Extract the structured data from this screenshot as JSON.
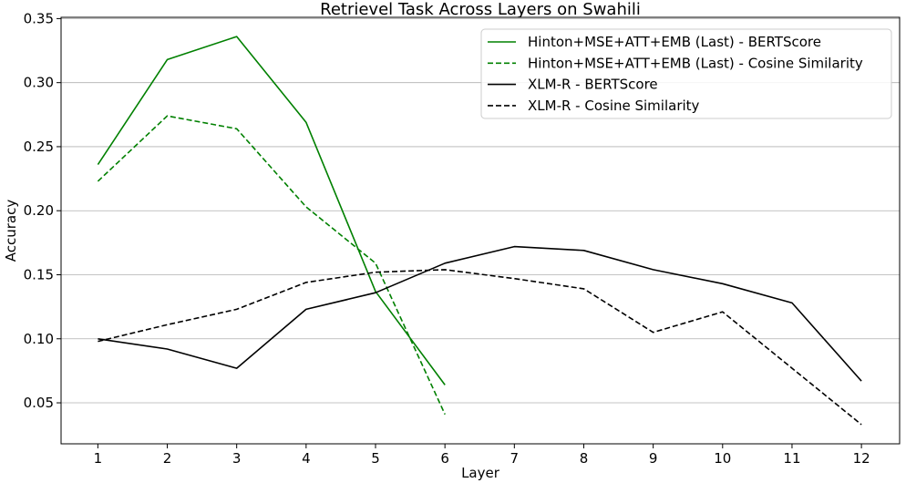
{
  "chart_data": {
    "type": "line",
    "title": "Retrievel Task Across Layers on Swahili",
    "xlabel": "Layer",
    "ylabel": "Accuracy",
    "xlim": [
      0.47,
      12.55
    ],
    "ylim": [
      0.018,
      0.351
    ],
    "xticks": [
      1,
      2,
      3,
      4,
      5,
      6,
      7,
      8,
      9,
      10,
      11,
      12
    ],
    "yticks": [
      0.05,
      0.1,
      0.15,
      0.2,
      0.25,
      0.3,
      0.35
    ],
    "ytick_labels": [
      "0.05",
      "0.10",
      "0.15",
      "0.20",
      "0.25",
      "0.30",
      "0.35"
    ],
    "grid": "horizontal",
    "legend_position": "top-right",
    "series": [
      {
        "name": "Hinton+MSE+ATT+EMB (Last) - BERTScore",
        "color": "#008000",
        "dash": "solid",
        "x": [
          1,
          2,
          3,
          4,
          5,
          6
        ],
        "values": [
          0.236,
          0.318,
          0.336,
          0.269,
          0.137,
          0.064
        ]
      },
      {
        "name": "Hinton+MSE+ATT+EMB (Last) - Cosine Similarity",
        "color": "#008000",
        "dash": "dashed",
        "x": [
          1,
          2,
          3,
          4,
          5,
          6
        ],
        "values": [
          0.223,
          0.274,
          0.264,
          0.203,
          0.159,
          0.041
        ]
      },
      {
        "name": "XLM-R - BERTScore",
        "color": "#000000",
        "dash": "solid",
        "x": [
          1,
          2,
          3,
          4,
          5,
          6,
          7,
          8,
          9,
          10,
          11,
          12
        ],
        "values": [
          0.1,
          0.092,
          0.077,
          0.123,
          0.136,
          0.159,
          0.172,
          0.169,
          0.154,
          0.143,
          0.128,
          0.067
        ]
      },
      {
        "name": "XLM-R - Cosine Similarity",
        "color": "#000000",
        "dash": "dashed",
        "x": [
          1,
          2,
          3,
          4,
          5,
          6,
          7,
          8,
          9,
          10,
          11,
          12
        ],
        "values": [
          0.098,
          0.111,
          0.123,
          0.144,
          0.152,
          0.154,
          0.147,
          0.139,
          0.105,
          0.121,
          0.077,
          0.033
        ]
      }
    ]
  }
}
